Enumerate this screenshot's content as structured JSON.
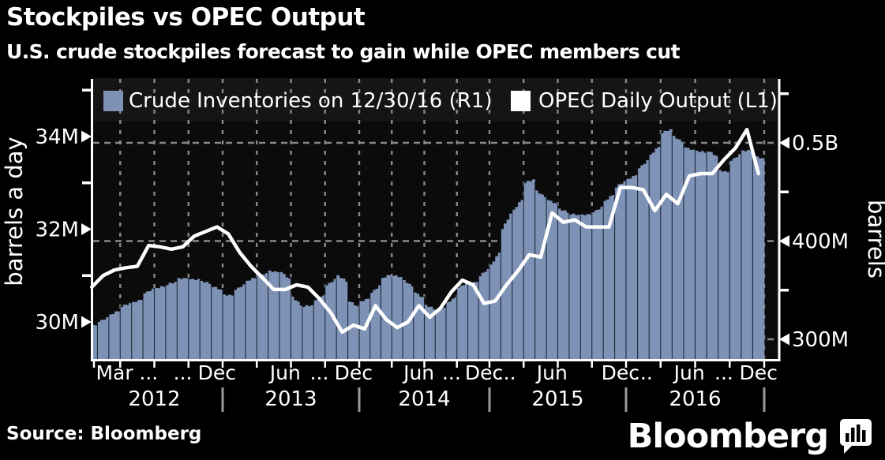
{
  "header": {
    "title": "Stockpiles vs OPEC Output",
    "subtitle": "U.S. crude stockpiles forecast to gain while OPEC members cut"
  },
  "footer": {
    "source": "Source: Bloomberg",
    "brand_wordmark": "Bloomberg",
    "brand_icon": "bloomberg-bar-chart-bubble-icon"
  },
  "colors": {
    "background": "#000000",
    "plot_panel": "#0b0b0b",
    "legend_band": "#151515",
    "bar_fill": "#7E92B6",
    "line_stroke": "#ffffff",
    "grid": "#8a8a8a",
    "axis_frame": "#ffffff",
    "text": "#ffffff",
    "year_separator": "#9a9a9a",
    "bar_month_gap": "#0a0f1a"
  },
  "legend": {
    "items": [
      {
        "label": "Crude Inventories on 12/30/16 (R1)",
        "swatch_color": "#7E92B6",
        "series": "crude_inventories"
      },
      {
        "label": "OPEC Daily Output (L1)",
        "swatch_color": "#ffffff",
        "series": "opec_daily_output"
      }
    ]
  },
  "axes": {
    "left": {
      "title": "barrels a day",
      "tick_labels": [
        "34M",
        "32M",
        "30M"
      ],
      "tick_values": [
        34,
        32,
        30
      ],
      "minor_values": [
        35,
        33,
        31
      ]
    },
    "right": {
      "title": "barrels",
      "tick_labels": [
        "0.5B",
        "400M",
        "300M"
      ],
      "tick_values": [
        500,
        400,
        300
      ],
      "minor_values": [
        550,
        450,
        350
      ]
    },
    "x": {
      "month_labels": [
        {
          "month_index": 2,
          "text": "Mar"
        },
        {
          "month_index": 5,
          "text": "..."
        },
        {
          "month_index": 8,
          "text": "..."
        },
        {
          "month_index": 11,
          "text": "Dec"
        },
        {
          "month_index": 17,
          "text": "Jun"
        },
        {
          "month_index": 20,
          "text": "..."
        },
        {
          "month_index": 23,
          "text": "Dec"
        },
        {
          "month_index": 29,
          "text": "Jun"
        },
        {
          "month_index": 32,
          "text": "..."
        },
        {
          "month_index": 35,
          "text": "Dec"
        },
        {
          "month_index": 37,
          "text": "..."
        },
        {
          "month_index": 41,
          "text": "Jun"
        },
        {
          "month_index": 47,
          "text": "Dec"
        },
        {
          "month_index": 49,
          "text": "..."
        },
        {
          "month_index": 53,
          "text": "Jun"
        },
        {
          "month_index": 56,
          "text": "..."
        },
        {
          "month_index": 59,
          "text": "Dec"
        }
      ],
      "year_labels": [
        "2012",
        "2013",
        "2014",
        "2015",
        "2016"
      ]
    }
  },
  "chart_data": {
    "type": "bar+line dual-axis",
    "x": {
      "unit": "month",
      "start": "2012-01",
      "end": "2016-12",
      "count": 60
    },
    "left_axis": {
      "label": "barrels a day",
      "ticks": [
        "30M",
        "32M",
        "34M"
      ],
      "range_millions_bpd": [
        29.2,
        35.2
      ]
    },
    "right_axis": {
      "label": "barrels",
      "ticks": [
        "300M",
        "400M",
        "0.5B"
      ],
      "range_millions_bbl": [
        278,
        566
      ]
    },
    "grid": {
      "horizontal_at_right_axis_values": [
        300,
        400,
        500
      ],
      "vertical": "quarterly",
      "style": "dashed"
    },
    "legend_position": "top inside plot",
    "series": [
      {
        "name": "Crude Inventories on 12/30/16 (R1)",
        "type": "bar",
        "axis": "right",
        "unit": "million barrels",
        "color": "#7E92B6",
        "values": [
          314,
          320,
          327,
          335,
          339,
          349,
          353,
          357,
          362,
          361,
          358,
          352,
          345,
          353,
          361,
          366,
          369,
          365,
          339,
          334,
          342,
          358,
          362,
          336,
          340,
          351,
          364,
          364,
          357,
          345,
          333,
          331,
          340,
          355,
          357,
          368,
          382,
          420,
          437,
          461,
          448,
          440,
          431,
          427,
          427,
          432,
          444,
          458,
          465,
          478,
          492,
          512,
          504,
          494,
          491,
          489,
          471,
          485,
          492,
          485
        ]
      },
      {
        "name": "OPEC Daily Output (L1)",
        "type": "line",
        "axis": "left",
        "unit": "million barrels a day",
        "color": "#ffffff",
        "values": [
          30.75,
          31.0,
          31.12,
          31.17,
          31.2,
          31.65,
          31.62,
          31.57,
          31.62,
          31.85,
          31.95,
          32.05,
          31.9,
          31.5,
          31.2,
          30.95,
          30.7,
          30.7,
          30.8,
          30.75,
          30.5,
          30.2,
          29.78,
          29.93,
          29.85,
          30.35,
          30.05,
          29.88,
          30.0,
          30.35,
          30.1,
          30.3,
          30.65,
          30.9,
          30.8,
          30.4,
          30.45,
          30.8,
          31.1,
          31.45,
          31.4,
          32.35,
          32.15,
          32.2,
          32.05,
          32.05,
          32.05,
          32.9,
          32.9,
          32.85,
          32.4,
          32.75,
          32.55,
          33.15,
          33.2,
          33.2,
          33.5,
          33.75,
          34.15,
          33.2
        ]
      }
    ]
  }
}
